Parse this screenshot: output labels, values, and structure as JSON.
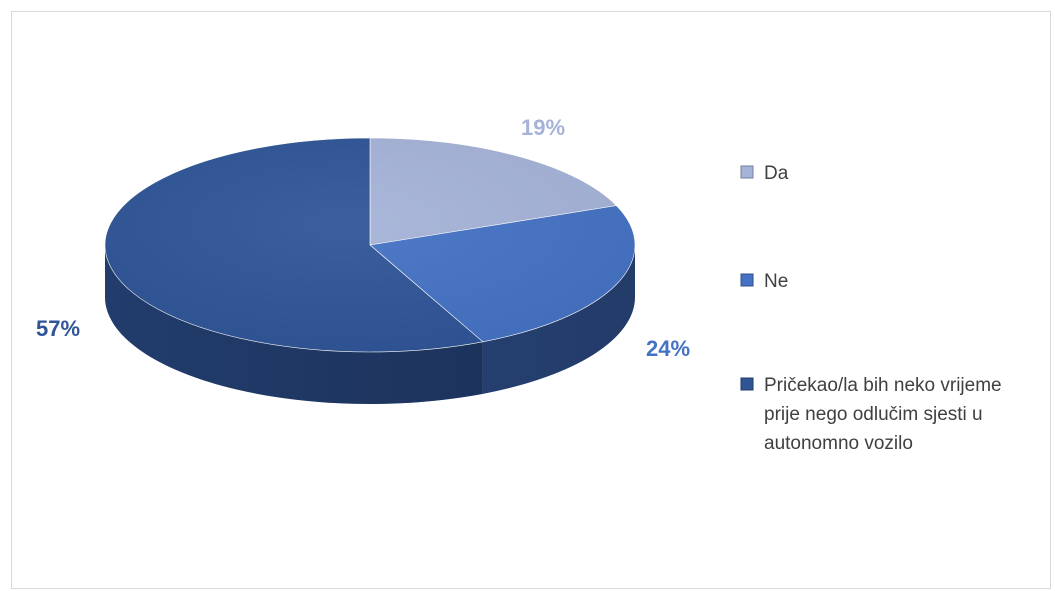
{
  "chart_data": {
    "type": "pie",
    "title": "",
    "categories": [
      "Da",
      "Ne",
      "Pričekao/la bih neko vrijeme prije nego odlučim sjesti u autonomno vozilo"
    ],
    "values": [
      19,
      24,
      57
    ],
    "data_labels": [
      "19%",
      "24%",
      "57%"
    ],
    "colors": [
      "#a5b3d8",
      "#4472c4",
      "#2f5597"
    ],
    "legend_position": "right",
    "style": "3d"
  },
  "legend": {
    "items": [
      {
        "lines": [
          "Da"
        ]
      },
      {
        "lines": [
          "Ne"
        ]
      },
      {
        "lines": [
          "Pričekao/la bih neko vrijeme",
          "prije nego odlučim sjesti u",
          "autonomno vozilo"
        ]
      }
    ]
  }
}
